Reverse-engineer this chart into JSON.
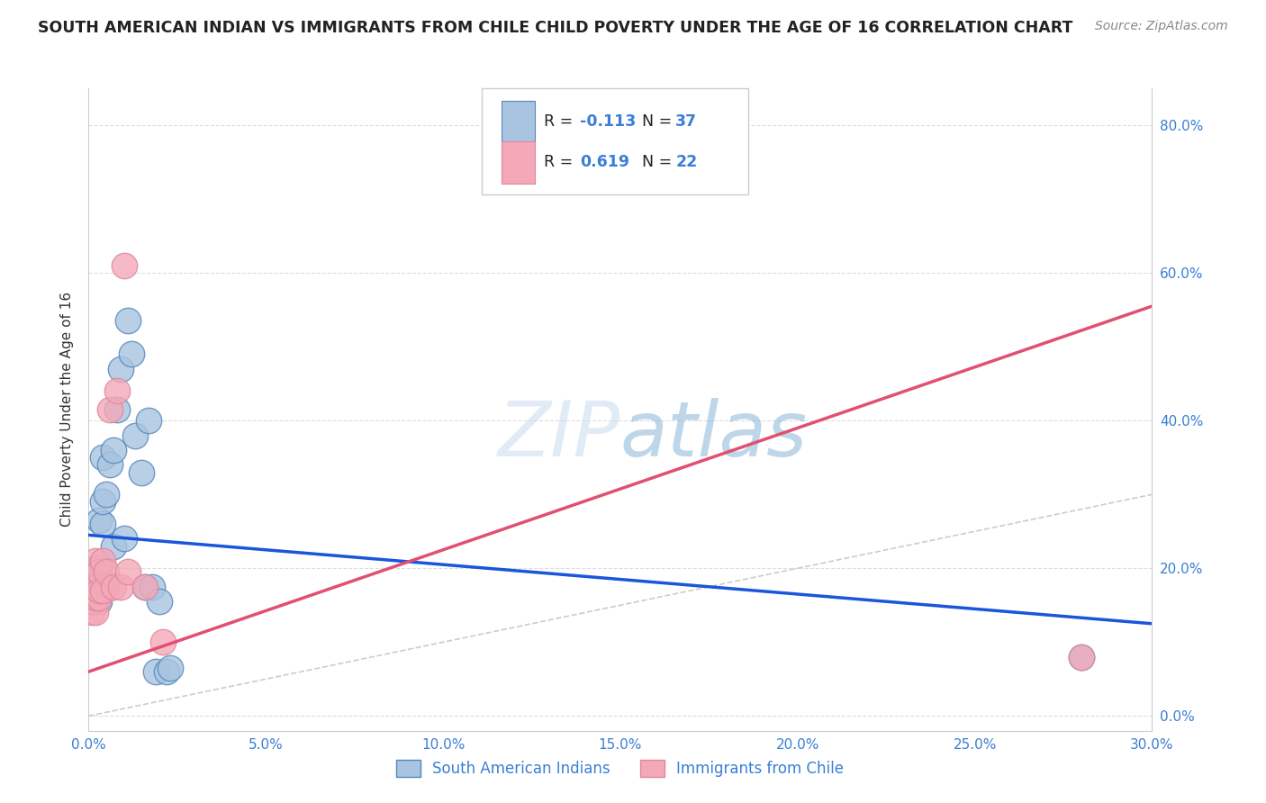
{
  "title": "SOUTH AMERICAN INDIAN VS IMMIGRANTS FROM CHILE CHILD POVERTY UNDER THE AGE OF 16 CORRELATION CHART",
  "source": "Source: ZipAtlas.com",
  "xlabel_ticks": [
    "0.0%",
    "5.0%",
    "10.0%",
    "15.0%",
    "20.0%",
    "25.0%",
    "30.0%"
  ],
  "ylabel_ticks": [
    "0.0%",
    "20.0%",
    "40.0%",
    "60.0%",
    "80.0%"
  ],
  "ylabel_label": "Child Poverty Under the Age of 16",
  "legend_label1": "South American Indians",
  "legend_label2": "Immigrants from Chile",
  "watermark": "ZIPatlas",
  "color_blue": "#a8c4e0",
  "color_pink": "#f4a8b8",
  "color_blue_edge": "#5588bb",
  "color_pink_edge": "#dd8899",
  "color_blue_line": "#1a56db",
  "color_pink_line": "#e05070",
  "color_diag": "#cccccc",
  "xlim": [
    0.0,
    0.3
  ],
  "ylim": [
    -0.02,
    0.85
  ],
  "blue_scatter_x": [
    0.001,
    0.001,
    0.001,
    0.001,
    0.001,
    0.002,
    0.002,
    0.002,
    0.002,
    0.003,
    0.003,
    0.003,
    0.003,
    0.003,
    0.004,
    0.004,
    0.004,
    0.005,
    0.005,
    0.006,
    0.007,
    0.007,
    0.008,
    0.009,
    0.01,
    0.011,
    0.012,
    0.013,
    0.015,
    0.016,
    0.017,
    0.018,
    0.019,
    0.02,
    0.022,
    0.023,
    0.28
  ],
  "blue_scatter_y": [
    0.155,
    0.16,
    0.17,
    0.175,
    0.185,
    0.155,
    0.165,
    0.17,
    0.2,
    0.155,
    0.165,
    0.175,
    0.2,
    0.265,
    0.26,
    0.29,
    0.35,
    0.175,
    0.3,
    0.34,
    0.23,
    0.36,
    0.415,
    0.47,
    0.24,
    0.535,
    0.49,
    0.38,
    0.33,
    0.175,
    0.4,
    0.175,
    0.06,
    0.155,
    0.06,
    0.065,
    0.08
  ],
  "pink_scatter_x": [
    0.001,
    0.001,
    0.001,
    0.002,
    0.002,
    0.002,
    0.002,
    0.003,
    0.003,
    0.003,
    0.004,
    0.004,
    0.005,
    0.006,
    0.007,
    0.008,
    0.009,
    0.01,
    0.011,
    0.016,
    0.021,
    0.28
  ],
  "pink_scatter_y": [
    0.14,
    0.155,
    0.17,
    0.14,
    0.16,
    0.175,
    0.21,
    0.16,
    0.17,
    0.195,
    0.17,
    0.21,
    0.195,
    0.415,
    0.175,
    0.44,
    0.175,
    0.61,
    0.195,
    0.175,
    0.1,
    0.08
  ],
  "blue_line_x": [
    0.0,
    0.3
  ],
  "blue_line_y": [
    0.245,
    0.125
  ],
  "pink_line_x": [
    0.0,
    0.3
  ],
  "pink_line_y": [
    0.06,
    0.555
  ]
}
